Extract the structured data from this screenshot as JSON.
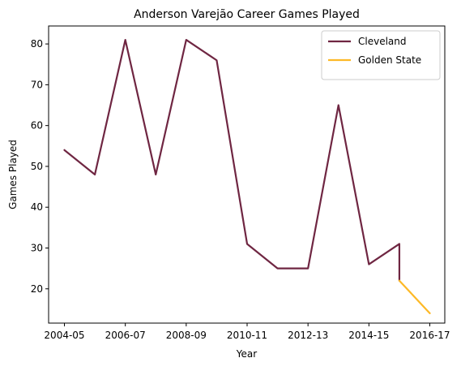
{
  "chart_data": {
    "type": "line",
    "title": "Anderson Varejão Career Games Played",
    "xlabel": "Year",
    "ylabel": "Games Played",
    "x_categories": [
      "2004-05",
      "2005-06",
      "2006-07",
      "2007-08",
      "2008-09",
      "2009-10",
      "2010-11",
      "2011-12",
      "2012-13",
      "2013-14",
      "2014-15",
      "2015-16",
      "2016-17"
    ],
    "x_tick_labels": [
      "2004-05",
      "2006-07",
      "2008-09",
      "2010-11",
      "2012-13",
      "2014-15",
      "2016-17"
    ],
    "y_ticks": [
      20,
      30,
      40,
      50,
      60,
      70,
      80
    ],
    "ylim": [
      11.6,
      84.4
    ],
    "grid": false,
    "legend_position": "top-right",
    "series": [
      {
        "name": "Cleveland",
        "color": "#6f2642",
        "points": [
          {
            "x": "2004-05",
            "y": 54
          },
          {
            "x": "2005-06",
            "y": 48
          },
          {
            "x": "2006-07",
            "y": 81
          },
          {
            "x": "2007-08",
            "y": 48
          },
          {
            "x": "2008-09",
            "y": 81
          },
          {
            "x": "2009-10",
            "y": 76
          },
          {
            "x": "2010-11",
            "y": 31
          },
          {
            "x": "2011-12",
            "y": 25
          },
          {
            "x": "2012-13",
            "y": 25
          },
          {
            "x": "2013-14",
            "y": 65
          },
          {
            "x": "2014-15",
            "y": 26
          },
          {
            "x": "2015-16",
            "y": 31
          },
          {
            "x": "2015-16",
            "y": 22
          }
        ]
      },
      {
        "name": "Golden State",
        "color": "#fdb927",
        "points": [
          {
            "x": "2015-16",
            "y": 22
          },
          {
            "x": "2016-17",
            "y": 14
          }
        ]
      }
    ]
  }
}
